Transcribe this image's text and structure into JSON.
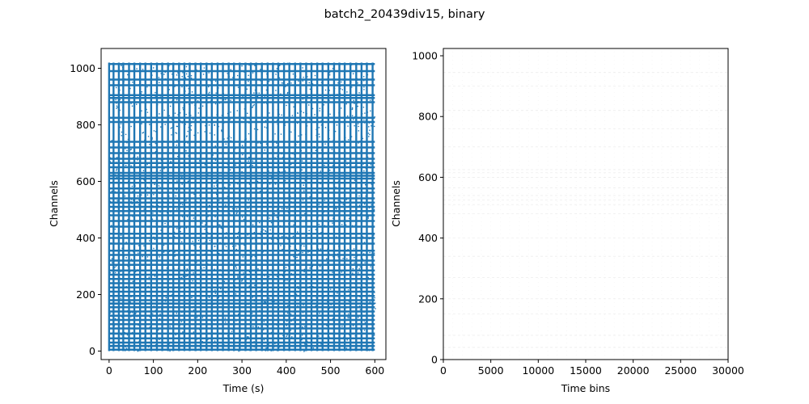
{
  "figure": {
    "title": "batch2_20439div15, binary",
    "background": "#ffffff"
  },
  "chart_data": [
    {
      "type": "scatter",
      "name": "raster",
      "color": "#1f77b4",
      "xlabel": "Time (s)",
      "ylabel": "Channels",
      "xlim": [
        -18,
        625
      ],
      "ylim": [
        -30,
        1070
      ],
      "xticks": [
        0,
        100,
        200,
        300,
        400,
        500,
        600
      ],
      "yticks": [
        0,
        200,
        400,
        600,
        800,
        1000
      ],
      "grid": false,
      "dense_channel_bands": [
        5,
        18,
        30,
        45,
        62,
        80,
        95,
        110,
        125,
        140,
        155,
        168,
        180,
        195,
        210,
        225,
        240,
        255,
        270,
        285,
        305,
        320,
        340,
        355,
        380,
        400,
        415,
        440,
        460,
        480,
        495,
        510,
        525,
        540,
        560,
        575,
        595,
        610,
        620,
        630,
        650,
        665,
        680,
        700,
        720,
        740,
        810,
        825,
        880,
        895,
        905,
        940,
        960,
        990,
        1015
      ],
      "burst_times": [
        0,
        10,
        22,
        32,
        45,
        57,
        70,
        82,
        95,
        108,
        120,
        133,
        145,
        158,
        170,
        182,
        195,
        207,
        220,
        232,
        245,
        257,
        270,
        282,
        295,
        308,
        320,
        332,
        345,
        358,
        370,
        382,
        395,
        407,
        420,
        432,
        445,
        457,
        470,
        482,
        495,
        508,
        520,
        532,
        545,
        558,
        570,
        582,
        595
      ],
      "channel_range": [
        0,
        1020
      ],
      "time_range": [
        0,
        600
      ]
    },
    {
      "type": "heatmap",
      "name": "binned",
      "color": "#d9d9d9",
      "xlabel": "Time bins",
      "ylabel": "Channels",
      "xlim": [
        0,
        30000
      ],
      "ylim": [
        0,
        1024
      ],
      "xticks": [
        0,
        5000,
        10000,
        15000,
        20000,
        25000,
        30000
      ],
      "yticks": [
        0,
        200,
        400,
        600,
        800,
        1000
      ],
      "grid": false,
      "faint_channel_rows": [
        40,
        80,
        150,
        200,
        270,
        340,
        400,
        480,
        510,
        525,
        540,
        565,
        600,
        615,
        625,
        700,
        760,
        820,
        900,
        945
      ],
      "faint_time_columns": [
        1000,
        2000,
        3000,
        4000,
        5000,
        6000,
        7000,
        8000,
        9000,
        10000,
        11000,
        12000,
        13000,
        14000,
        15000,
        16000,
        17000,
        18000,
        19000,
        20000,
        21000,
        22000,
        23000,
        24000,
        25000,
        26000,
        27000,
        28000,
        29000
      ]
    }
  ]
}
